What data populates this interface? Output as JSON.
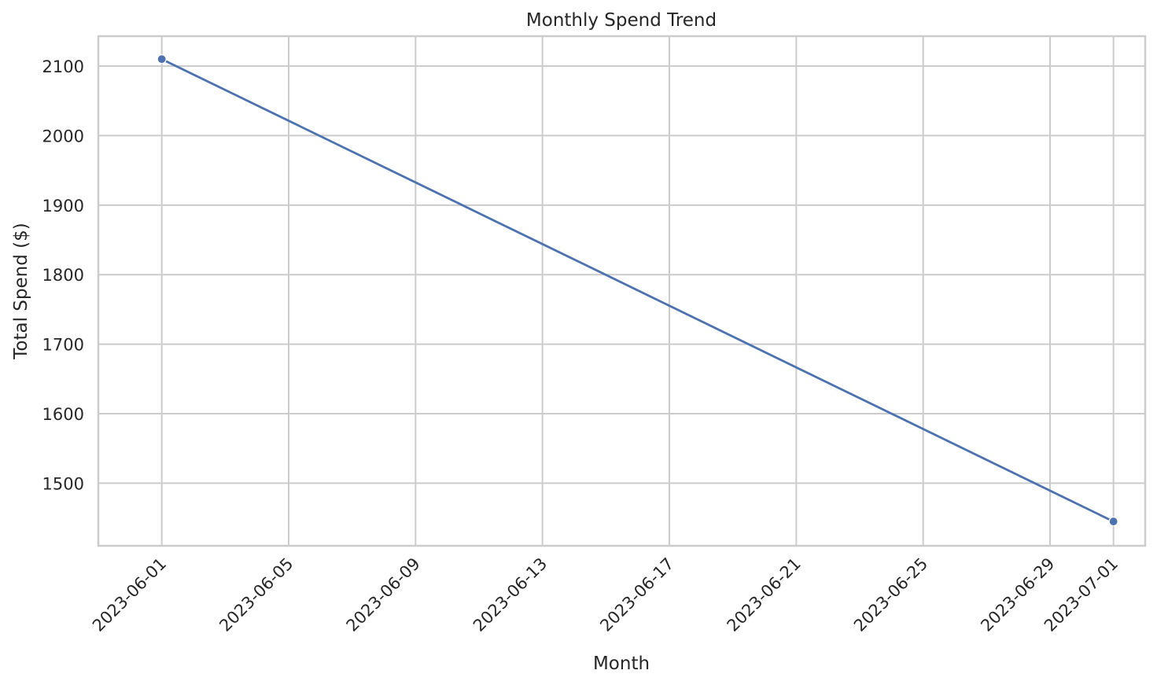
{
  "chart_data": {
    "type": "line",
    "title": "Monthly Spend Trend",
    "xlabel": "Month",
    "ylabel": "Total Spend ($)",
    "x_ticks": [
      "2023-06-01",
      "2023-06-05",
      "2023-06-09",
      "2023-06-13",
      "2023-06-17",
      "2023-06-21",
      "2023-06-25",
      "2023-06-29",
      "2023-07-01"
    ],
    "y_ticks": [
      1500,
      1600,
      1700,
      1800,
      1900,
      2000,
      2100
    ],
    "xlim": [
      "2023-05-30",
      "2023-07-02"
    ],
    "ylim": [
      1410,
      2143
    ],
    "grid": true,
    "series": [
      {
        "color": "#4c72b0",
        "points": [
          {
            "x": "2023-06-01",
            "y": 2110
          },
          {
            "x": "2023-07-01",
            "y": 1445
          }
        ]
      }
    ]
  }
}
